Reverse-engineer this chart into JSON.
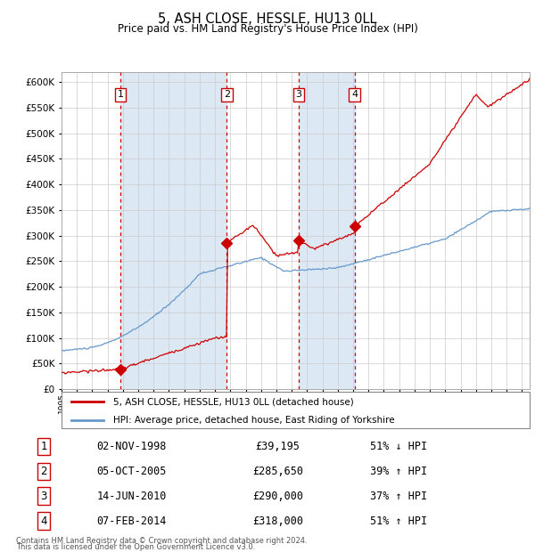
{
  "title": "5, ASH CLOSE, HESSLE, HU13 0LL",
  "subtitle": "Price paid vs. HM Land Registry's House Price Index (HPI)",
  "legend_line1": "5, ASH CLOSE, HESSLE, HU13 0LL (detached house)",
  "legend_line2": "HPI: Average price, detached house, East Riding of Yorkshire",
  "footnote1": "Contains HM Land Registry data © Crown copyright and database right 2024.",
  "footnote2": "This data is licensed under the Open Government Licence v3.0.",
  "transactions": [
    {
      "num": 1,
      "date": "02-NOV-1998",
      "price": 39195,
      "pct": "51% ↓ HPI",
      "year": 1998.84
    },
    {
      "num": 2,
      "date": "05-OCT-2005",
      "price": 285650,
      "pct": "39% ↑ HPI",
      "year": 2005.76
    },
    {
      "num": 3,
      "date": "14-JUN-2010",
      "price": 290000,
      "pct": "37% ↑ HPI",
      "year": 2010.45
    },
    {
      "num": 4,
      "date": "07-FEB-2014",
      "price": 318000,
      "pct": "51% ↑ HPI",
      "year": 2014.1
    }
  ],
  "red_color": "#cc0000",
  "blue_color": "#6699cc",
  "bg_shaded": "#dce9f5",
  "grid_color": "#cccccc",
  "ylim": [
    0,
    620000
  ],
  "xlim_start": 1995.0,
  "xlim_end": 2025.5,
  "ownership_spans": [
    {
      "start": 1998.84,
      "end": 2005.76
    },
    {
      "start": 2010.45,
      "end": 2014.1
    }
  ]
}
